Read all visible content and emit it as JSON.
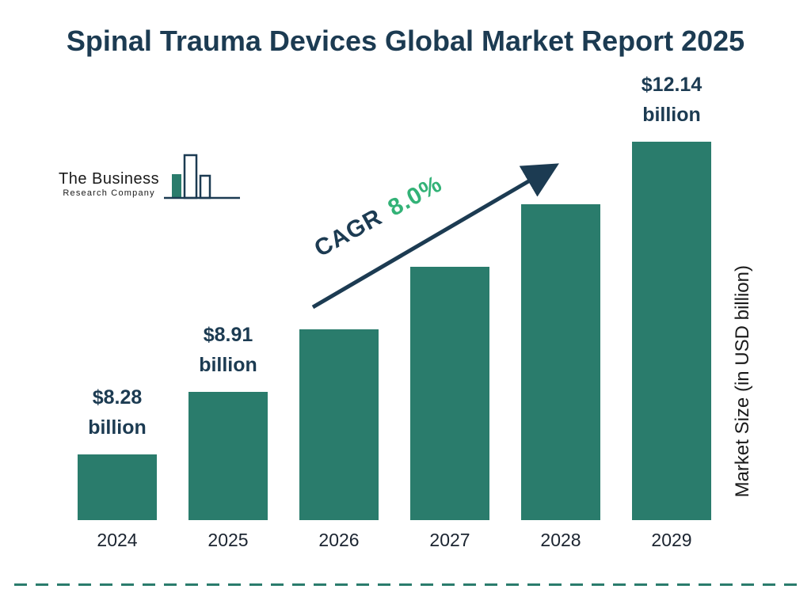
{
  "title": "Spinal Trauma Devices Global Market Report 2025",
  "logo": {
    "line1": "The Business",
    "line2": "Research Company"
  },
  "cagr": {
    "label": "CAGR",
    "value": "8.0%"
  },
  "chart_data": {
    "type": "bar",
    "categories": [
      "2024",
      "2025",
      "2026",
      "2027",
      "2028",
      "2029"
    ],
    "values": [
      8.28,
      8.91,
      9.62,
      10.39,
      11.22,
      12.14
    ],
    "bar_labels": [
      "$8.28 billion",
      "$8.91 billion",
      null,
      null,
      null,
      "$12.14 billion"
    ],
    "title": "Spinal Trauma Devices Global Market Report 2025",
    "xlabel": "",
    "ylabel": "Market Size (in USD billion)",
    "legend": "none",
    "grid": false,
    "annotations": [
      "CAGR 8.0%"
    ]
  },
  "colors": {
    "bar": "#2a7c6c",
    "navy": "#1c3b52",
    "accent_green": "#33b277",
    "dashed_line": "#2a7c6c"
  }
}
